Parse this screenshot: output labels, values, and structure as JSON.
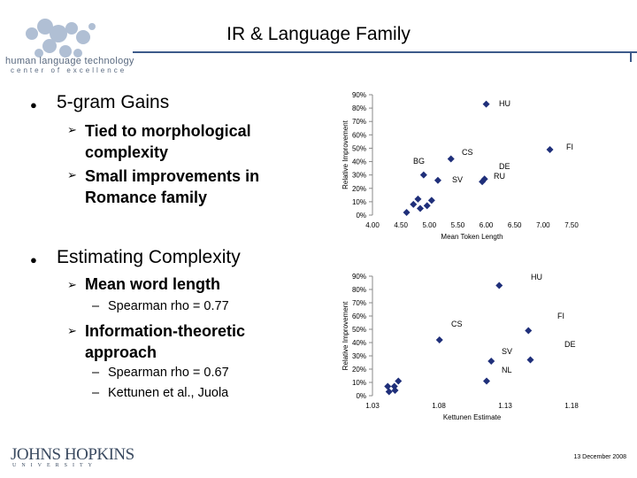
{
  "slide": {
    "title": "IR & Language Family",
    "date": "13 December 2008",
    "logo_line1": "human language technology",
    "logo_line2": "center of excellence",
    "jhu_line1": "JOHNS HOPKINS",
    "jhu_line2": "UNIVERSITY"
  },
  "bullets": {
    "b1": "5-gram Gains",
    "b1_sub1a": "Tied to morphological",
    "b1_sub1b": "complexity",
    "b1_sub2a": "Small improvements in",
    "b1_sub2b": "Romance family",
    "b2": "Estimating Complexity",
    "b2_sub1": "Mean word length",
    "b2_sub1_detail": "Spearman rho = 0.77",
    "b2_sub2a": "Information-theoretic",
    "b2_sub2b": "approach",
    "b2_sub2_detail1": "Spearman rho = 0.67",
    "b2_sub2_detail2": "Kettunen et al., Juola"
  },
  "colors": {
    "point": "#1f2f7a",
    "rule": "#3d5a8a"
  },
  "chart_data": [
    {
      "type": "scatter",
      "xlabel": "Mean Token Length",
      "ylabel": "Relative Improvement",
      "xlim": [
        4.0,
        7.5
      ],
      "ylim": [
        0,
        90
      ],
      "xticks": [
        "4.00",
        "4.50",
        "5.00",
        "5.50",
        "6.00",
        "6.50",
        "7.00",
        "7.50"
      ],
      "yticks": [
        "0%",
        "10%",
        "20%",
        "30%",
        "40%",
        "50%",
        "60%",
        "70%",
        "80%",
        "90%"
      ],
      "grid": false,
      "points": [
        {
          "x": 4.6,
          "y": 2,
          "label": ""
        },
        {
          "x": 4.72,
          "y": 8,
          "label": ""
        },
        {
          "x": 4.8,
          "y": 12,
          "label": ""
        },
        {
          "x": 4.84,
          "y": 5,
          "label": ""
        },
        {
          "x": 4.96,
          "y": 7,
          "label": ""
        },
        {
          "x": 5.04,
          "y": 11,
          "label": ""
        },
        {
          "x": 4.9,
          "y": 30,
          "label": "BG"
        },
        {
          "x": 5.15,
          "y": 26,
          "label": "SV"
        },
        {
          "x": 5.38,
          "y": 42,
          "label": "CS"
        },
        {
          "x": 5.93,
          "y": 25,
          "label": ""
        },
        {
          "x": 5.97,
          "y": 27,
          "label": "DE RU"
        },
        {
          "x": 6.0,
          "y": 83,
          "label": "HU"
        },
        {
          "x": 7.12,
          "y": 49,
          "label": "FI"
        }
      ]
    },
    {
      "type": "scatter",
      "xlabel": "Kettunen Estimate",
      "ylabel": "Relative Improvement",
      "xlim": [
        1.03,
        1.18
      ],
      "ylim": [
        0,
        90
      ],
      "xticks": [
        "1.03",
        "1.08",
        "1.13",
        "1.18"
      ],
      "yticks": [
        "0%",
        "10%",
        "20%",
        "30%",
        "40%",
        "50%",
        "60%",
        "70%",
        "80%",
        "90%"
      ],
      "grid": false,
      "points": [
        {
          "x": 1.0415,
          "y": 7,
          "label": ""
        },
        {
          "x": 1.0425,
          "y": 3,
          "label": ""
        },
        {
          "x": 1.0465,
          "y": 7,
          "label": ""
        },
        {
          "x": 1.047,
          "y": 4,
          "label": ""
        },
        {
          "x": 1.0495,
          "y": 11,
          "label": ""
        },
        {
          "x": 1.0805,
          "y": 42,
          "label": "CS"
        },
        {
          "x": 1.116,
          "y": 11,
          "label": "NL"
        },
        {
          "x": 1.1195,
          "y": 26,
          "label": "SV"
        },
        {
          "x": 1.1255,
          "y": 83,
          "label": "HU"
        },
        {
          "x": 1.1475,
          "y": 49,
          "label": "FI"
        },
        {
          "x": 1.149,
          "y": 27,
          "label": "DE"
        }
      ]
    }
  ]
}
